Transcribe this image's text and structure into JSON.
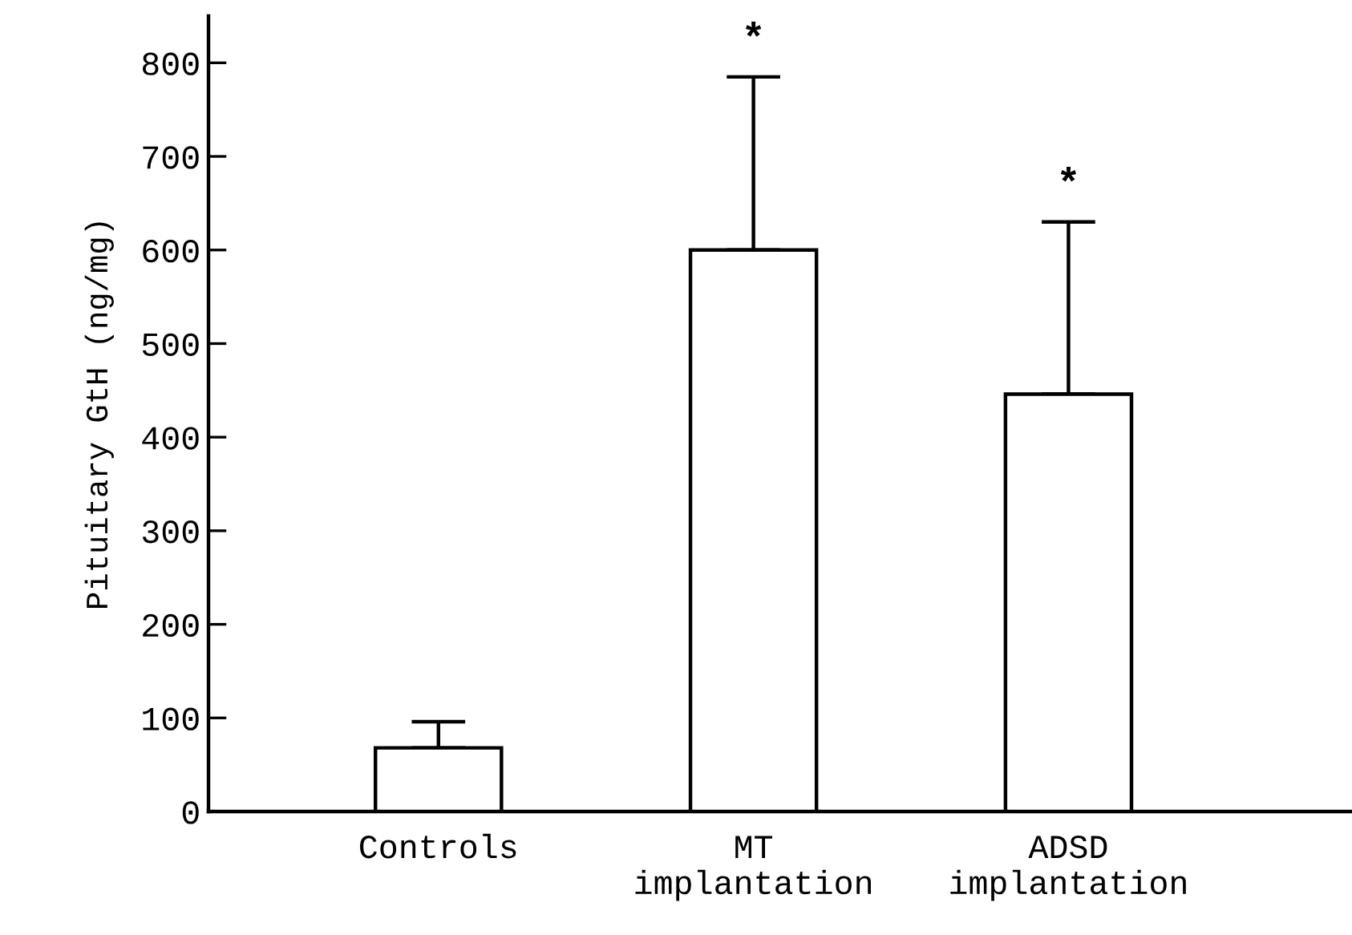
{
  "chart_data": {
    "type": "bar",
    "ylabel": "Pituitary GtH (ng/mg)",
    "categories": [
      "Controls",
      "MT\nimplantation",
      "ADSD\nimplantation"
    ],
    "values": [
      68,
      600,
      446
    ],
    "errors": [
      [
        68,
        96
      ],
      [
        600,
        785
      ],
      [
        446,
        630
      ]
    ],
    "color": "#ffffff",
    "ylim": [
      0,
      850
    ],
    "yticks": [
      0,
      100,
      200,
      300,
      400,
      500,
      600,
      700,
      800
    ],
    "annotations": [
      "*",
      "*"
    ],
    "grid": false,
    "legend": false
  }
}
